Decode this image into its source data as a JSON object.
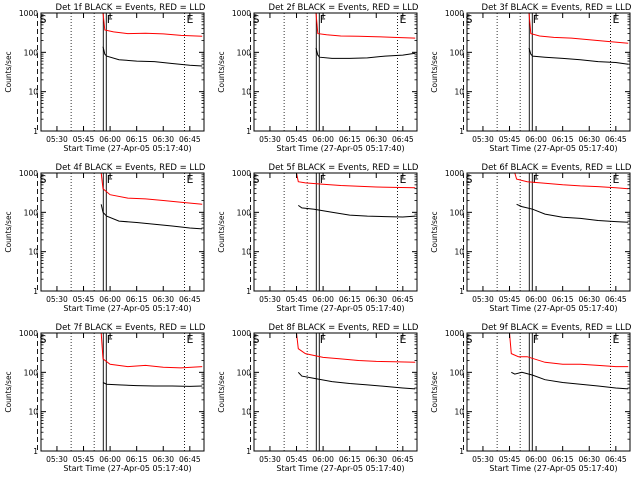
{
  "figure": {
    "xlabel": "Start Time (27-Apr-05 05:17:40)",
    "ylabel": "Counts/sec"
  },
  "chart_data": [
    {
      "type": "line",
      "title": "Det 1f BLACK = Events, RED = LLD",
      "xlabel": "Start Time (27-Apr-05 05:17:40)",
      "ylabel": "Counts/sec",
      "yscale": "log",
      "ylim": [
        1,
        1000
      ],
      "xlim": [
        "05:21",
        "06:53"
      ],
      "xticks": [
        "05:30",
        "05:45",
        "06:00",
        "06:15",
        "06:30",
        "06:45"
      ],
      "yticks": [
        "1",
        "10",
        "100",
        "1000"
      ],
      "markers": [
        {
          "time": "05:19",
          "label": "S"
        },
        {
          "time": "05:57",
          "label": "F"
        },
        {
          "time": "06:42",
          "label": "E"
        }
      ],
      "series": [
        {
          "color": "#ff0000",
          "x": [
            "05:21",
            "05:25",
            "05:30",
            "05:40",
            "05:50",
            "05:56",
            "05:57",
            "06:02",
            "06:10",
            "06:20",
            "06:30",
            "06:40",
            "06:52"
          ],
          "y": [
            1000,
            1000,
            1000,
            1000,
            1000,
            1000,
            370,
            330,
            300,
            305,
            295,
            270,
            255
          ]
        },
        {
          "color": "#000000",
          "x": [
            "05:56",
            "05:57",
            "05:58",
            "06:05",
            "06:15",
            "06:25",
            "06:35",
            "06:45",
            "06:52"
          ],
          "y": [
            140,
            90,
            80,
            65,
            60,
            58,
            52,
            47,
            45
          ]
        }
      ]
    },
    {
      "type": "line",
      "title": "Det 2f BLACK = Events, RED = LLD",
      "xlabel": "Start Time (27-Apr-05 05:17:40)",
      "ylabel": "Counts/sec",
      "yscale": "log",
      "ylim": [
        1,
        1000
      ],
      "xlim": [
        "05:21",
        "06:53"
      ],
      "xticks": [
        "05:30",
        "05:45",
        "06:00",
        "06:15",
        "06:30",
        "06:45"
      ],
      "yticks": [
        "1",
        "10",
        "100",
        "1000"
      ],
      "markers": [
        {
          "time": "05:19",
          "label": "S"
        },
        {
          "time": "05:57",
          "label": "F"
        },
        {
          "time": "06:42",
          "label": "E"
        }
      ],
      "series": [
        {
          "color": "#ff0000",
          "x": [
            "05:21",
            "05:25",
            "05:30",
            "05:40",
            "05:50",
            "05:56",
            "05:57",
            "06:02",
            "06:10",
            "06:20",
            "06:30",
            "06:40",
            "06:52"
          ],
          "y": [
            1000,
            1000,
            1000,
            1000,
            1000,
            1000,
            300,
            280,
            260,
            255,
            250,
            240,
            230
          ]
        },
        {
          "color": "#000000",
          "x": [
            "05:56",
            "05:57",
            "05:58",
            "06:05",
            "06:15",
            "06:25",
            "06:35",
            "06:45",
            "06:52"
          ],
          "y": [
            130,
            85,
            75,
            70,
            70,
            72,
            80,
            85,
            95
          ]
        }
      ]
    },
    {
      "type": "line",
      "title": "Det 3f BLACK = Events, RED = LLD",
      "xlabel": "Start Time (27-Apr-05 05:17:40)",
      "ylabel": "Counts/sec",
      "yscale": "log",
      "ylim": [
        1,
        1000
      ],
      "xlim": [
        "05:21",
        "06:53"
      ],
      "xticks": [
        "05:30",
        "05:45",
        "06:00",
        "06:15",
        "06:30",
        "06:45"
      ],
      "yticks": [
        "1",
        "10",
        "100",
        "1000"
      ],
      "markers": [
        {
          "time": "05:19",
          "label": "S"
        },
        {
          "time": "05:57",
          "label": "F"
        },
        {
          "time": "06:42",
          "label": "E"
        }
      ],
      "series": [
        {
          "color": "#ff0000",
          "x": [
            "05:21",
            "05:25",
            "05:30",
            "05:40",
            "05:50",
            "05:56",
            "05:57",
            "06:02",
            "06:10",
            "06:20",
            "06:30",
            "06:40",
            "06:52"
          ],
          "y": [
            1000,
            1000,
            1000,
            1000,
            1000,
            1000,
            300,
            260,
            240,
            230,
            210,
            190,
            170
          ]
        },
        {
          "color": "#000000",
          "x": [
            "05:56",
            "05:57",
            "05:58",
            "06:05",
            "06:15",
            "06:25",
            "06:35",
            "06:45",
            "06:52"
          ],
          "y": [
            130,
            90,
            80,
            75,
            70,
            65,
            58,
            55,
            50
          ]
        }
      ]
    },
    {
      "type": "line",
      "title": "Det 4f BLACK = Events, RED = LLD",
      "xlabel": "Start Time (27-Apr-05 05:17:40)",
      "ylabel": "Counts/sec",
      "yscale": "log",
      "ylim": [
        1,
        1000
      ],
      "xlim": [
        "05:21",
        "06:53"
      ],
      "xticks": [
        "05:30",
        "05:45",
        "06:00",
        "06:15",
        "06:30",
        "06:45"
      ],
      "yticks": [
        "1",
        "10",
        "100",
        "1000"
      ],
      "markers": [
        {
          "time": "05:19",
          "label": "S"
        },
        {
          "time": "05:57",
          "label": "F"
        },
        {
          "time": "06:42",
          "label": "E"
        }
      ],
      "series": [
        {
          "color": "#ff0000",
          "x": [
            "05:21",
            "05:25",
            "05:30",
            "05:40",
            "05:50",
            "05:55",
            "05:56",
            "06:00",
            "06:10",
            "06:20",
            "06:30",
            "06:40",
            "06:52"
          ],
          "y": [
            1000,
            1000,
            1000,
            1000,
            1000,
            1000,
            400,
            280,
            230,
            220,
            200,
            180,
            160
          ]
        },
        {
          "color": "#000000",
          "x": [
            "05:55",
            "05:56",
            "05:58",
            "06:05",
            "06:15",
            "06:25",
            "06:35",
            "06:45",
            "06:52"
          ],
          "y": [
            160,
            100,
            80,
            60,
            55,
            50,
            45,
            40,
            38
          ]
        }
      ]
    },
    {
      "type": "line",
      "title": "Det 5f BLACK = Events, RED = LLD",
      "xlabel": "Start Time (27-Apr-05 05:17:40)",
      "ylabel": "Counts/sec",
      "yscale": "log",
      "ylim": [
        1,
        1000
      ],
      "xlim": [
        "05:21",
        "06:53"
      ],
      "xticks": [
        "05:30",
        "05:45",
        "06:00",
        "06:15",
        "06:30",
        "06:45"
      ],
      "yticks": [
        "1",
        "10",
        "100",
        "1000"
      ],
      "markers": [
        {
          "time": "05:19",
          "label": "S"
        },
        {
          "time": "05:57",
          "label": "F"
        },
        {
          "time": "06:42",
          "label": "E"
        }
      ],
      "series": [
        {
          "color": "#ff0000",
          "x": [
            "05:21",
            "05:25",
            "05:30",
            "05:40",
            "05:45",
            "05:46",
            "05:50",
            "06:00",
            "06:10",
            "06:20",
            "06:30",
            "06:40",
            "06:52"
          ],
          "y": [
            1000,
            1000,
            1000,
            1000,
            1000,
            600,
            560,
            520,
            480,
            460,
            440,
            430,
            420
          ]
        },
        {
          "color": "#000000",
          "x": [
            "05:46",
            "05:48",
            "05:55",
            "06:05",
            "06:15",
            "06:25",
            "06:35",
            "06:45",
            "06:52"
          ],
          "y": [
            150,
            130,
            120,
            100,
            85,
            80,
            78,
            76,
            80
          ]
        }
      ]
    },
    {
      "type": "line",
      "title": "Det 6f BLACK = Events, RED = LLD",
      "xlabel": "Start Time (27-Apr-05 05:17:40)",
      "ylabel": "Counts/sec",
      "yscale": "log",
      "ylim": [
        1,
        1000
      ],
      "xlim": [
        "05:21",
        "06:53"
      ],
      "xticks": [
        "05:30",
        "05:45",
        "06:00",
        "06:15",
        "06:30",
        "06:45"
      ],
      "yticks": [
        "1",
        "10",
        "100",
        "1000"
      ],
      "markers": [
        {
          "time": "05:19",
          "label": "S"
        },
        {
          "time": "05:57",
          "label": "F"
        },
        {
          "time": "06:42",
          "label": "E"
        }
      ],
      "series": [
        {
          "color": "#ff0000",
          "x": [
            "05:21",
            "05:25",
            "05:30",
            "05:40",
            "05:48",
            "05:49",
            "05:55",
            "06:05",
            "06:15",
            "06:25",
            "06:35",
            "06:45",
            "06:52"
          ],
          "y": [
            1000,
            1000,
            1000,
            1000,
            1000,
            700,
            600,
            550,
            500,
            470,
            450,
            420,
            400
          ]
        },
        {
          "color": "#000000",
          "x": [
            "05:49",
            "05:52",
            "05:58",
            "06:05",
            "06:15",
            "06:25",
            "06:35",
            "06:45",
            "06:52"
          ],
          "y": [
            160,
            140,
            120,
            90,
            75,
            70,
            62,
            58,
            56
          ]
        }
      ]
    },
    {
      "type": "line",
      "title": "Det 7f BLACK = Events, RED = LLD",
      "xlabel": "Start Time (27-Apr-05 05:17:40)",
      "ylabel": "Counts/sec",
      "yscale": "log",
      "ylim": [
        1,
        1000
      ],
      "xlim": [
        "05:21",
        "06:53"
      ],
      "xticks": [
        "05:30",
        "05:45",
        "06:00",
        "06:15",
        "06:30",
        "06:45"
      ],
      "yticks": [
        "1",
        "10",
        "100",
        "1000"
      ],
      "markers": [
        {
          "time": "05:19",
          "label": "S"
        },
        {
          "time": "05:57",
          "label": "F"
        },
        {
          "time": "06:42",
          "label": "E"
        }
      ],
      "series": [
        {
          "color": "#ff0000",
          "x": [
            "05:21",
            "05:25",
            "05:30",
            "05:40",
            "05:50",
            "05:55",
            "05:56",
            "06:00",
            "06:10",
            "06:20",
            "06:30",
            "06:40",
            "06:52"
          ],
          "y": [
            1000,
            1000,
            1000,
            1000,
            1000,
            1000,
            220,
            160,
            140,
            150,
            135,
            130,
            140
          ]
        },
        {
          "color": "#000000",
          "x": [
            "05:56",
            "05:58",
            "06:05",
            "06:15",
            "06:25",
            "06:35",
            "06:45",
            "06:52"
          ],
          "y": [
            55,
            50,
            48,
            46,
            45,
            45,
            44,
            45
          ]
        }
      ]
    },
    {
      "type": "line",
      "title": "Det 8f BLACK = Events, RED = LLD",
      "xlabel": "Start Time (27-Apr-05 05:17:40)",
      "ylabel": "Counts/sec",
      "yscale": "log",
      "ylim": [
        1,
        1000
      ],
      "xlim": [
        "05:21",
        "06:53"
      ],
      "xticks": [
        "05:30",
        "05:45",
        "06:00",
        "06:15",
        "06:30",
        "06:45"
      ],
      "yticks": [
        "1",
        "10",
        "100",
        "1000"
      ],
      "markers": [
        {
          "time": "05:19",
          "label": "S"
        },
        {
          "time": "05:57",
          "label": "F"
        },
        {
          "time": "06:42",
          "label": "E"
        }
      ],
      "series": [
        {
          "color": "#ff0000",
          "x": [
            "05:21",
            "05:25",
            "05:30",
            "05:40",
            "05:45",
            "05:46",
            "05:50",
            "06:00",
            "06:10",
            "06:20",
            "06:30",
            "06:40",
            "06:52"
          ],
          "y": [
            1000,
            1000,
            1000,
            1000,
            1000,
            400,
            300,
            240,
            220,
            200,
            190,
            185,
            180
          ]
        },
        {
          "color": "#000000",
          "x": [
            "05:46",
            "05:48",
            "05:55",
            "06:05",
            "06:15",
            "06:25",
            "06:35",
            "06:45",
            "06:52"
          ],
          "y": [
            100,
            80,
            70,
            58,
            52,
            48,
            44,
            40,
            38
          ]
        }
      ]
    },
    {
      "type": "line",
      "title": "Det 9f BLACK = Events, RED = LLD",
      "xlabel": "Start Time (27-Apr-05 05:17:40)",
      "ylabel": "Counts/sec",
      "yscale": "log",
      "ylim": [
        1,
        1000
      ],
      "xlim": [
        "05:21",
        "06:53"
      ],
      "xticks": [
        "05:30",
        "05:45",
        "06:00",
        "06:15",
        "06:30",
        "06:45"
      ],
      "yticks": [
        "1",
        "10",
        "100",
        "1000"
      ],
      "markers": [
        {
          "time": "05:19",
          "label": "S"
        },
        {
          "time": "05:57",
          "label": "F"
        },
        {
          "time": "06:42",
          "label": "E"
        }
      ],
      "series": [
        {
          "color": "#ff0000",
          "x": [
            "05:21",
            "05:25",
            "05:30",
            "05:40",
            "05:45",
            "05:46",
            "05:50",
            "05:55",
            "06:05",
            "06:15",
            "06:25",
            "06:35",
            "06:45",
            "06:52"
          ],
          "y": [
            1000,
            1000,
            1000,
            1000,
            1000,
            300,
            250,
            250,
            180,
            160,
            160,
            150,
            140,
            140
          ]
        },
        {
          "color": "#000000",
          "x": [
            "05:46",
            "05:48",
            "05:52",
            "05:58",
            "06:05",
            "06:15",
            "06:25",
            "06:35",
            "06:45",
            "06:52"
          ],
          "y": [
            100,
            90,
            100,
            85,
            65,
            55,
            50,
            45,
            40,
            38
          ]
        }
      ]
    }
  ]
}
